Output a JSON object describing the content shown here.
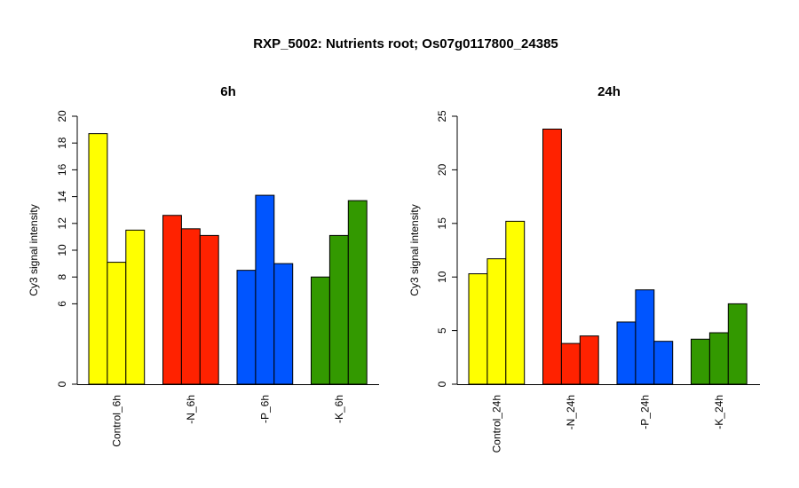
{
  "figure": {
    "title": "RXP_5002: Nutrients root; Os07g0117800_24385"
  },
  "chart_data": [
    {
      "type": "bar",
      "title": "6h",
      "ylabel": "Cy3 signal intensity",
      "xlabel": "",
      "ylim": [
        0,
        20
      ],
      "yticks": [
        0,
        6,
        8,
        10,
        12,
        14,
        16,
        18,
        20
      ],
      "categories": [
        "Control_6h",
        "-N_6h",
        "-P_6h",
        "-K_6h"
      ],
      "colors": [
        "#FFFF00",
        "#FF2200",
        "#0055FF",
        "#339900"
      ],
      "values": [
        [
          18.7,
          9.1,
          11.5
        ],
        [
          12.6,
          11.6,
          11.1
        ],
        [
          8.5,
          14.1,
          9.0
        ],
        [
          8.0,
          11.1,
          13.7
        ]
      ]
    },
    {
      "type": "bar",
      "title": "24h",
      "ylabel": "Cy3 signal intensity",
      "xlabel": "",
      "ylim": [
        0,
        25
      ],
      "yticks": [
        0,
        5,
        10,
        15,
        20,
        25
      ],
      "categories": [
        "Control_24h",
        "-N_24h",
        "-P_24h",
        "-K_24h"
      ],
      "colors": [
        "#FFFF00",
        "#FF2200",
        "#0055FF",
        "#339900"
      ],
      "values": [
        [
          10.3,
          11.7,
          15.2
        ],
        [
          23.8,
          3.8,
          4.5
        ],
        [
          5.8,
          8.8,
          4.0
        ],
        [
          4.2,
          4.8,
          7.5
        ]
      ]
    }
  ]
}
